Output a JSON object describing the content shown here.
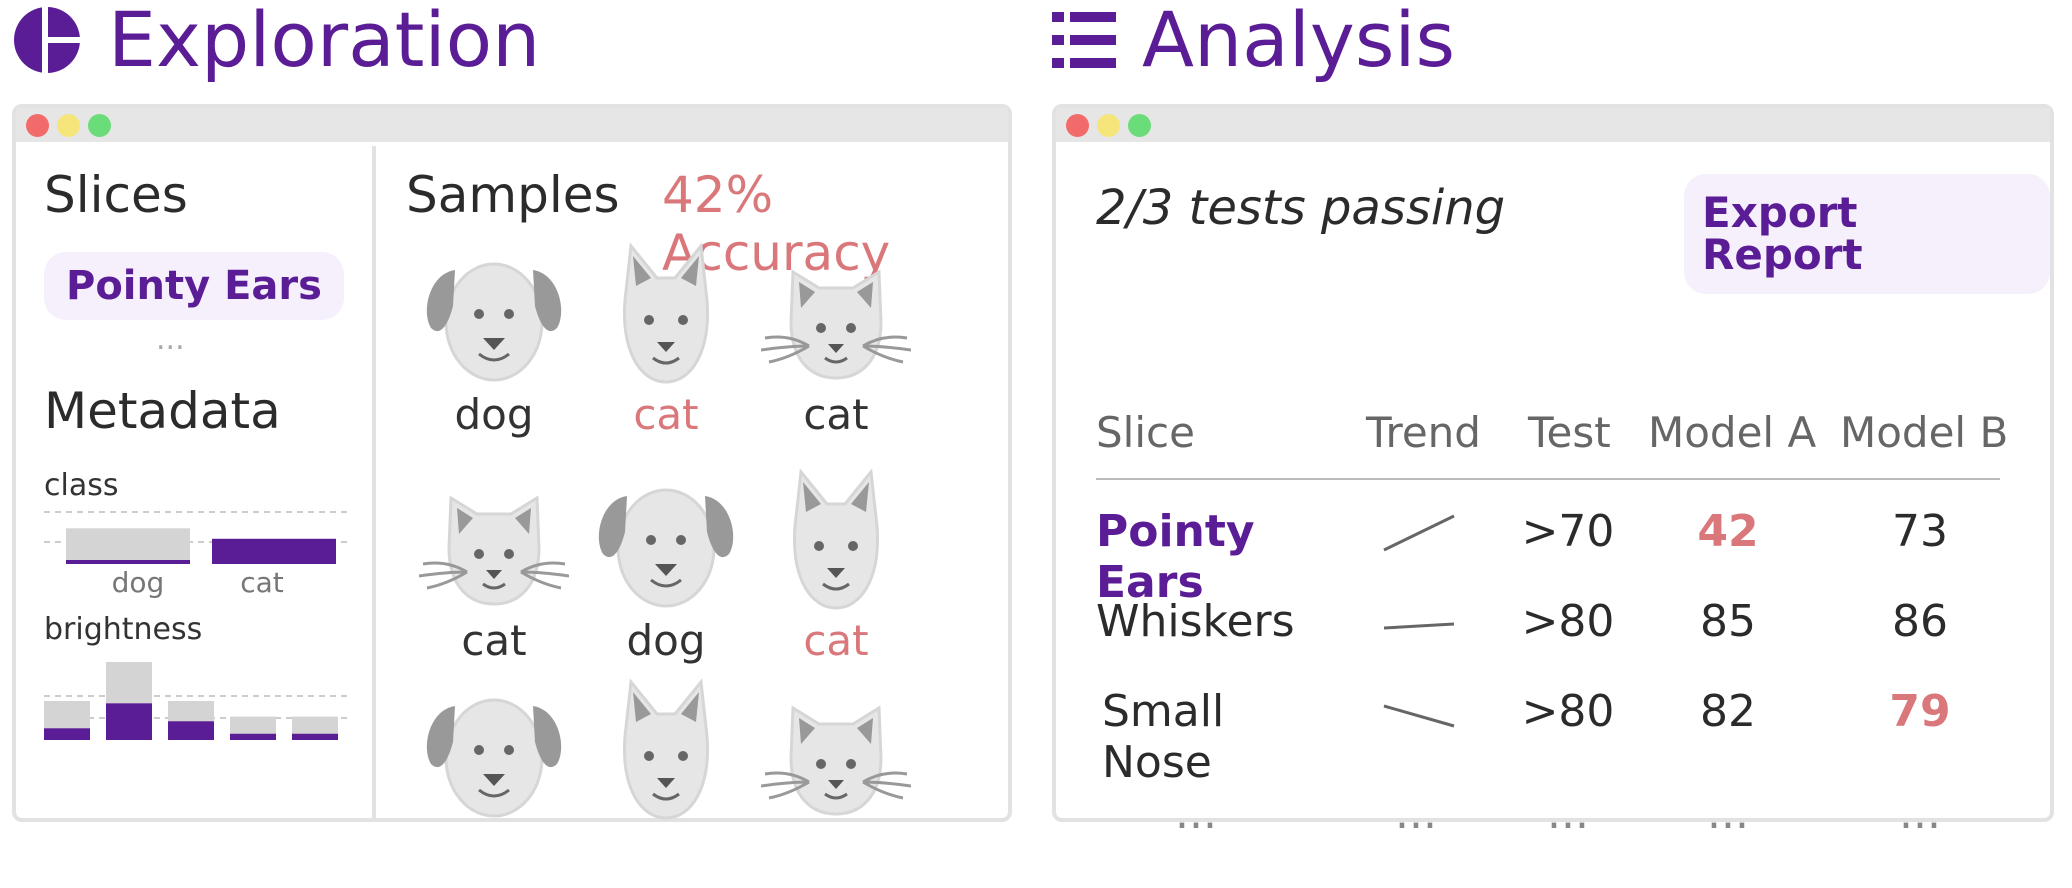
{
  "exploration": {
    "title": "Exploration",
    "icon": "pie-chart-icon",
    "slices_heading": "Slices",
    "slice_pill": "Pointy Ears",
    "slices_more": "...",
    "metadata_heading": "Metadata",
    "class_label": "class",
    "class_bars": [
      {
        "category": "dog",
        "total": 0.85,
        "selected": 0.05
      },
      {
        "category": "cat",
        "total": 0.6,
        "selected": 0.6
      }
    ],
    "brightness_label": "brightness",
    "brightness_bars": [
      {
        "total": 0.5,
        "selected": 0.15
      },
      {
        "total": 1.0,
        "selected": 0.47
      },
      {
        "total": 0.5,
        "selected": 0.24
      },
      {
        "total": 0.3,
        "selected": 0.08
      },
      {
        "total": 0.3,
        "selected": 0.08
      }
    ],
    "samples_heading": "Samples",
    "accuracy": "42% Accuracy",
    "samples": [
      {
        "icon": "dog-icon",
        "label": "dog",
        "correct": true
      },
      {
        "icon": "cat-pointy-icon",
        "label": "cat",
        "correct": false
      },
      {
        "icon": "cat-icon",
        "label": "cat",
        "correct": true
      },
      {
        "icon": "cat-icon",
        "label": "cat",
        "correct": true
      },
      {
        "icon": "dog-icon",
        "label": "dog",
        "correct": true
      },
      {
        "icon": "cat-pointy-icon",
        "label": "cat",
        "correct": false
      },
      {
        "icon": "dog-icon",
        "label": "",
        "correct": true
      },
      {
        "icon": "cat-pointy-icon",
        "label": "",
        "correct": true
      },
      {
        "icon": "cat-icon",
        "label": "",
        "correct": true
      }
    ]
  },
  "analysis": {
    "title": "Analysis",
    "icon": "list-icon",
    "tests_status": "2/3 tests passing",
    "export_label": "Export Report",
    "columns": [
      "Slice",
      "Trend",
      "Test",
      "Model A",
      "Model B"
    ],
    "rows": [
      {
        "slice": "Pointy Ears",
        "trend": "up",
        "test": ">70",
        "model_a": "42",
        "model_b": "73",
        "a_fail": true,
        "b_fail": false,
        "highlight": true
      },
      {
        "slice": "Whiskers",
        "trend": "flat",
        "test": ">80",
        "model_a": "85",
        "model_b": "86",
        "a_fail": false,
        "b_fail": false,
        "highlight": false
      },
      {
        "slice": "Small Nose",
        "trend": "down",
        "test": ">80",
        "model_a": "82",
        "model_b": "79",
        "a_fail": false,
        "b_fail": true,
        "highlight": false
      }
    ],
    "ellipsis": "..."
  },
  "colors": {
    "accent": "#5b1d96",
    "error": "#d9777a",
    "bar_gray": "#d4d4d4",
    "icon_gray": "#e6e6e6",
    "icon_dark": "#999999",
    "close": "#f26b6b",
    "minimize": "#f6e57a",
    "maximize": "#6bdc7a"
  }
}
